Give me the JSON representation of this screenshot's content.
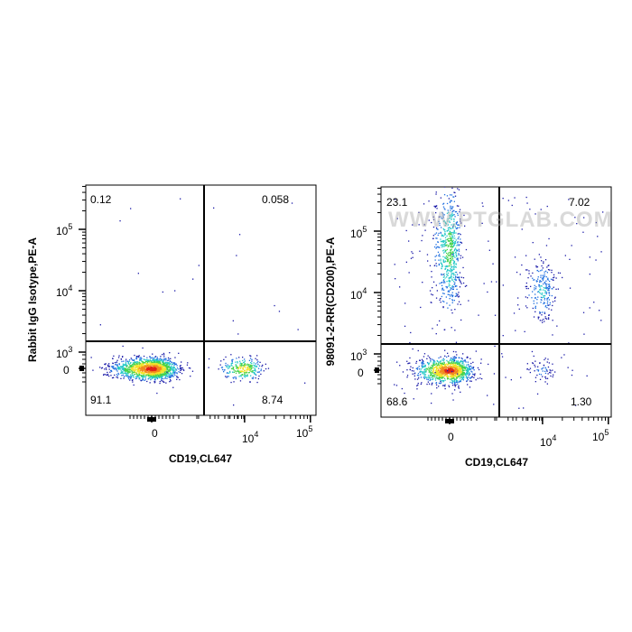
{
  "watermark": "WWW.PTGLAB.COM",
  "chart_data": [
    {
      "type": "scatter",
      "subtype": "flow-cytometry-density-dot-plot",
      "xlabel": "CD19,CL647",
      "ylabel": "Rabbit IgG Isotype,PE-A",
      "x_scale": "biexponential",
      "y_scale": "biexponential",
      "x_ticks": [
        "0",
        "10^4",
        "10^5"
      ],
      "y_ticks": [
        "0",
        "10^3",
        "10^4",
        "10^5"
      ],
      "gate": {
        "x": 3000,
        "y": 1400
      },
      "quadrants": {
        "top_left": "0.12",
        "top_right": "0.058",
        "bottom_left": "91.1",
        "bottom_right": "8.74"
      },
      "populations": [
        {
          "name": "CD19- / PE-",
          "x_center": 0,
          "y_center": 0,
          "share": 0.911
        },
        {
          "name": "CD19+ / PE-",
          "x_center": 10000,
          "y_center": 0,
          "share": 0.0874
        }
      ],
      "colormap": [
        "#1a1aa8",
        "#1f6fe0",
        "#22c7c7",
        "#44d24a",
        "#f2e227",
        "#f28a1d",
        "#e0221a"
      ]
    },
    {
      "type": "scatter",
      "subtype": "flow-cytometry-density-dot-plot",
      "xlabel": "CD19,CL647",
      "ylabel": "98091-2-RR(CD200),PE-A",
      "x_scale": "biexponential",
      "y_scale": "biexponential",
      "x_ticks": [
        "0",
        "10^4",
        "10^5"
      ],
      "y_ticks": [
        "0",
        "10^3",
        "10^4",
        "10^5"
      ],
      "gate": {
        "x": 3000,
        "y": 1400
      },
      "quadrants": {
        "top_left": "23.1",
        "top_right": "7.02",
        "bottom_left": "68.6",
        "bottom_right": "1.30"
      },
      "populations": [
        {
          "name": "CD19- / CD200-",
          "x_center": 0,
          "y_center": 0,
          "share": 0.686
        },
        {
          "name": "CD19- / CD200+",
          "x_center": 0,
          "y_center": 10000,
          "share": 0.231
        },
        {
          "name": "CD19+ / CD200+",
          "x_center": 10000,
          "y_center": 30000,
          "share": 0.0702
        },
        {
          "name": "CD19+ / CD200-",
          "x_center": 10000,
          "y_center": 0,
          "share": 0.013
        }
      ],
      "colormap": [
        "#1a1aa8",
        "#1f6fe0",
        "#22c7c7",
        "#44d24a",
        "#f2e227",
        "#f28a1d",
        "#e0221a"
      ]
    }
  ]
}
